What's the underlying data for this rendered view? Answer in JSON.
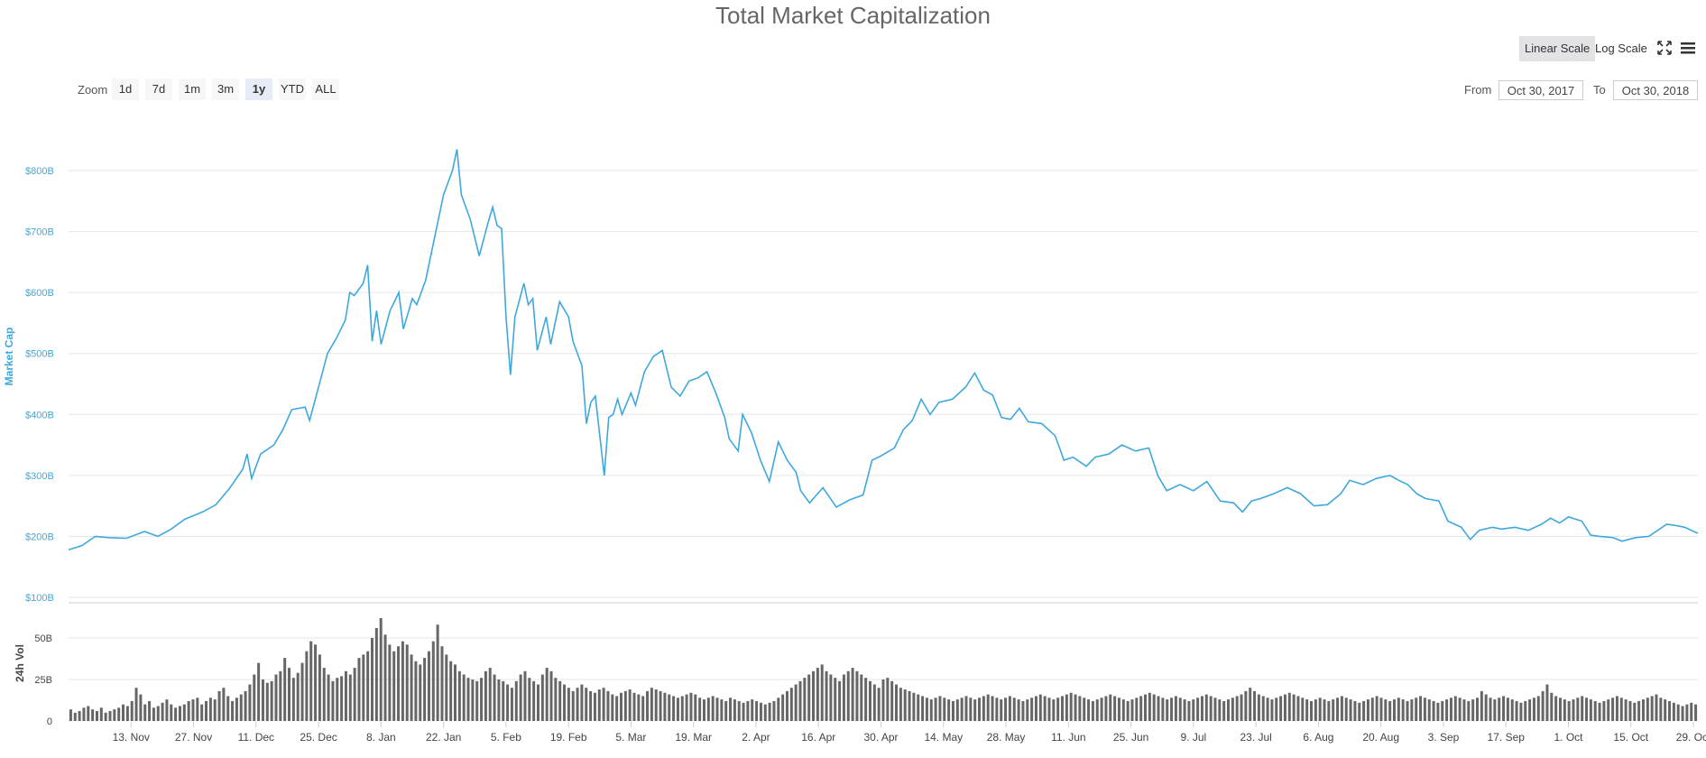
{
  "title": "Total Market Capitalization",
  "scale_buttons": {
    "linear": "Linear Scale",
    "log": "Log Scale",
    "active": "linear"
  },
  "toolbar_icons": [
    "fullscreen-icon",
    "menu-icon"
  ],
  "zoom": {
    "label": "Zoom",
    "buttons": [
      "1d",
      "7d",
      "1m",
      "3m",
      "1y",
      "YTD",
      "ALL"
    ],
    "active": "1y"
  },
  "range": {
    "from_label": "From",
    "from_value": "Oct 30, 2017",
    "to_label": "To",
    "to_value": "Oct 30, 2018"
  },
  "colors": {
    "line": "#3ea8dd",
    "axis_label": "#3ea8dd",
    "volume_bar": "#666666",
    "grid": "#e6e6e6"
  },
  "chart_data": {
    "type": "line",
    "x_range": [
      "2017-10-30",
      "2018-10-30"
    ],
    "ylabel": "Market Cap",
    "y_ticks": [
      "$100B",
      "$200B",
      "$300B",
      "$400B",
      "$500B",
      "$600B",
      "$700B",
      "$800B"
    ],
    "y_tick_values": [
      100,
      200,
      300,
      400,
      500,
      600,
      700,
      800
    ],
    "ylim": [
      100,
      880
    ],
    "x_ticks": [
      "13. Nov",
      "27. Nov",
      "11. Dec",
      "25. Dec",
      "8. Jan",
      "22. Jan",
      "5. Feb",
      "19. Feb",
      "5. Mar",
      "19. Mar",
      "2. Apr",
      "16. Apr",
      "30. Apr",
      "14. May",
      "28. May",
      "11. Jun",
      "25. Jun",
      "9. Jul",
      "23. Jul",
      "6. Aug",
      "20. Aug",
      "3. Sep",
      "17. Sep",
      "1. Oct",
      "15. Oct",
      "29. Oct"
    ],
    "x_tick_days": [
      14,
      28,
      42,
      56,
      70,
      84,
      98,
      112,
      126,
      140,
      154,
      168,
      182,
      196,
      210,
      224,
      238,
      252,
      266,
      280,
      294,
      308,
      322,
      336,
      350,
      364
    ],
    "market_cap_series": {
      "unit": "billions USD",
      "points": [
        [
          "2017-10-30",
          178
        ],
        [
          "2017-11-02",
          185
        ],
        [
          "2017-11-05",
          200
        ],
        [
          "2017-11-08",
          198
        ],
        [
          "2017-11-12",
          197
        ],
        [
          "2017-11-16",
          208
        ],
        [
          "2017-11-19",
          200
        ],
        [
          "2017-11-22",
          212
        ],
        [
          "2017-11-25",
          228
        ],
        [
          "2017-11-29",
          240
        ],
        [
          "2017-12-02",
          252
        ],
        [
          "2017-12-05",
          278
        ],
        [
          "2017-12-08",
          310
        ],
        [
          "2017-12-09",
          335
        ],
        [
          "2017-12-10",
          295
        ],
        [
          "2017-12-12",
          335
        ],
        [
          "2017-12-15",
          350
        ],
        [
          "2017-12-17",
          375
        ],
        [
          "2017-12-19",
          408
        ],
        [
          "2017-12-22",
          412
        ],
        [
          "2017-12-23",
          390
        ],
        [
          "2017-12-25",
          445
        ],
        [
          "2017-12-27",
          500
        ],
        [
          "2017-12-29",
          525
        ],
        [
          "2017-12-31",
          555
        ],
        [
          "2018-01-01",
          600
        ],
        [
          "2018-01-02",
          595
        ],
        [
          "2018-01-04",
          615
        ],
        [
          "2018-01-05",
          645
        ],
        [
          "2018-01-06",
          520
        ],
        [
          "2018-01-07",
          570
        ],
        [
          "2018-01-08",
          515
        ],
        [
          "2018-01-10",
          570
        ],
        [
          "2018-01-12",
          600
        ],
        [
          "2018-01-13",
          540
        ],
        [
          "2018-01-15",
          590
        ],
        [
          "2018-01-16",
          580
        ],
        [
          "2018-01-18",
          620
        ],
        [
          "2018-01-20",
          690
        ],
        [
          "2018-01-22",
          760
        ],
        [
          "2018-01-24",
          800
        ],
        [
          "2018-01-25",
          835
        ],
        [
          "2018-01-26",
          760
        ],
        [
          "2018-01-28",
          720
        ],
        [
          "2018-01-30",
          660
        ],
        [
          "2018-02-01",
          715
        ],
        [
          "2018-02-02",
          740
        ],
        [
          "2018-02-03",
          710
        ],
        [
          "2018-02-04",
          705
        ],
        [
          "2018-02-05",
          560
        ],
        [
          "2018-02-06",
          465
        ],
        [
          "2018-02-07",
          560
        ],
        [
          "2018-02-09",
          615
        ],
        [
          "2018-02-10",
          580
        ],
        [
          "2018-02-11",
          590
        ],
        [
          "2018-02-12",
          505
        ],
        [
          "2018-02-14",
          560
        ],
        [
          "2018-02-15",
          515
        ],
        [
          "2018-02-17",
          585
        ],
        [
          "2018-02-19",
          560
        ],
        [
          "2018-02-20",
          520
        ],
        [
          "2018-02-22",
          480
        ],
        [
          "2018-02-23",
          385
        ],
        [
          "2018-02-24",
          420
        ],
        [
          "2018-02-25",
          430
        ],
        [
          "2018-02-27",
          300
        ],
        [
          "2018-02-28",
          395
        ],
        [
          "2018-03-01",
          400
        ],
        [
          "2018-03-02",
          425
        ],
        [
          "2018-03-03",
          400
        ],
        [
          "2018-03-05",
          435
        ],
        [
          "2018-03-06",
          415
        ],
        [
          "2018-03-08",
          470
        ],
        [
          "2018-03-10",
          495
        ],
        [
          "2018-03-12",
          505
        ],
        [
          "2018-03-14",
          445
        ],
        [
          "2018-03-16",
          430
        ],
        [
          "2018-03-18",
          455
        ],
        [
          "2018-03-20",
          460
        ],
        [
          "2018-03-22",
          470
        ],
        [
          "2018-03-24",
          435
        ],
        [
          "2018-03-26",
          395
        ],
        [
          "2018-03-27",
          360
        ],
        [
          "2018-03-29",
          340
        ],
        [
          "2018-03-30",
          400
        ],
        [
          "2018-04-01",
          370
        ],
        [
          "2018-04-03",
          325
        ],
        [
          "2018-04-05",
          290
        ],
        [
          "2018-04-07",
          355
        ],
        [
          "2018-04-09",
          325
        ],
        [
          "2018-04-11",
          305
        ],
        [
          "2018-04-12",
          275
        ],
        [
          "2018-04-14",
          255
        ],
        [
          "2018-04-17",
          280
        ],
        [
          "2018-04-20",
          248
        ],
        [
          "2018-04-23",
          260
        ],
        [
          "2018-04-26",
          268
        ],
        [
          "2018-04-28",
          325
        ],
        [
          "2018-04-30",
          332
        ],
        [
          "2018-05-03",
          345
        ],
        [
          "2018-05-05",
          375
        ],
        [
          "2018-05-07",
          390
        ],
        [
          "2018-05-09",
          425
        ],
        [
          "2018-05-11",
          400
        ],
        [
          "2018-05-13",
          420
        ],
        [
          "2018-05-16",
          425
        ],
        [
          "2018-05-19",
          445
        ],
        [
          "2018-05-21",
          468
        ],
        [
          "2018-05-23",
          440
        ],
        [
          "2018-05-25",
          432
        ],
        [
          "2018-05-27",
          395
        ],
        [
          "2018-05-29",
          392
        ],
        [
          "2018-05-31",
          410
        ],
        [
          "2018-06-02",
          388
        ],
        [
          "2018-06-05",
          385
        ],
        [
          "2018-06-08",
          365
        ],
        [
          "2018-06-10",
          325
        ],
        [
          "2018-06-12",
          330
        ],
        [
          "2018-06-15",
          315
        ],
        [
          "2018-06-17",
          330
        ],
        [
          "2018-06-20",
          335
        ],
        [
          "2018-06-23",
          350
        ],
        [
          "2018-06-26",
          340
        ],
        [
          "2018-06-29",
          345
        ],
        [
          "2018-07-01",
          300
        ],
        [
          "2018-07-03",
          275
        ],
        [
          "2018-07-06",
          285
        ],
        [
          "2018-07-09",
          275
        ],
        [
          "2018-07-12",
          290
        ],
        [
          "2018-07-15",
          258
        ],
        [
          "2018-07-18",
          255
        ],
        [
          "2018-07-20",
          240
        ],
        [
          "2018-07-22",
          258
        ],
        [
          "2018-07-24",
          262
        ],
        [
          "2018-07-27",
          270
        ],
        [
          "2018-07-30",
          280
        ],
        [
          "2018-08-02",
          270
        ],
        [
          "2018-08-05",
          250
        ],
        [
          "2018-08-08",
          252
        ],
        [
          "2018-08-11",
          270
        ],
        [
          "2018-08-13",
          292
        ],
        [
          "2018-08-16",
          285
        ],
        [
          "2018-08-19",
          295
        ],
        [
          "2018-08-22",
          300
        ],
        [
          "2018-08-24",
          292
        ],
        [
          "2018-08-26",
          285
        ],
        [
          "2018-08-28",
          270
        ],
        [
          "2018-08-30",
          262
        ],
        [
          "2018-09-02",
          258
        ],
        [
          "2018-09-04",
          225
        ],
        [
          "2018-09-07",
          215
        ],
        [
          "2018-09-09",
          195
        ],
        [
          "2018-09-11",
          210
        ],
        [
          "2018-09-14",
          215
        ],
        [
          "2018-09-16",
          212
        ],
        [
          "2018-09-19",
          215
        ],
        [
          "2018-09-22",
          210
        ],
        [
          "2018-09-25",
          220
        ],
        [
          "2018-09-27",
          230
        ],
        [
          "2018-09-29",
          222
        ],
        [
          "2018-10-01",
          232
        ],
        [
          "2018-10-04",
          225
        ],
        [
          "2018-10-06",
          202
        ],
        [
          "2018-10-08",
          200
        ],
        [
          "2018-10-11",
          198
        ],
        [
          "2018-10-13",
          192
        ],
        [
          "2018-10-16",
          198
        ],
        [
          "2018-10-19",
          200
        ],
        [
          "2018-10-21",
          210
        ],
        [
          "2018-10-23",
          220
        ],
        [
          "2018-10-25",
          218
        ],
        [
          "2018-10-27",
          215
        ],
        [
          "2018-10-30",
          205
        ]
      ]
    },
    "volume_series": {
      "ylabel": "24h Vol",
      "y_ticks": [
        "0",
        "25B",
        "50B"
      ],
      "y_tick_values": [
        0,
        25,
        50
      ],
      "ylim": [
        0,
        66
      ],
      "unit": "billions USD",
      "x_step_days": 1,
      "values": [
        7,
        5,
        6,
        8,
        9,
        7,
        6,
        8,
        5,
        6,
        7,
        8,
        10,
        9,
        12,
        20,
        16,
        10,
        12,
        8,
        9,
        11,
        13,
        10,
        8,
        9,
        10,
        12,
        13,
        14,
        10,
        12,
        14,
        13,
        18,
        20,
        15,
        12,
        14,
        16,
        18,
        22,
        28,
        35,
        25,
        23,
        24,
        28,
        30,
        38,
        32,
        26,
        29,
        35,
        42,
        48,
        46,
        40,
        32,
        28,
        24,
        26,
        27,
        30,
        28,
        32,
        38,
        40,
        42,
        50,
        56,
        62,
        52,
        46,
        42,
        45,
        48,
        46,
        40,
        36,
        34,
        38,
        42,
        48,
        58,
        45,
        40,
        36,
        34,
        30,
        28,
        26,
        25,
        24,
        26,
        30,
        32,
        28,
        25,
        24,
        22,
        20,
        24,
        28,
        30,
        26,
        24,
        22,
        28,
        32,
        30,
        26,
        24,
        22,
        20,
        18,
        20,
        22,
        20,
        18,
        17,
        19,
        20,
        18,
        16,
        15,
        17,
        18,
        19,
        17,
        16,
        15,
        18,
        20,
        19,
        18,
        17,
        16,
        15,
        14,
        15,
        16,
        17,
        16,
        14,
        13,
        14,
        15,
        14,
        13,
        12,
        14,
        13,
        12,
        11,
        12,
        13,
        12,
        11,
        10,
        11,
        12,
        14,
        16,
        18,
        20,
        22,
        24,
        26,
        28,
        30,
        32,
        34,
        30,
        28,
        26,
        24,
        28,
        30,
        32,
        30,
        28,
        26,
        24,
        22,
        20,
        25,
        26,
        24,
        22,
        20,
        19,
        18,
        17,
        16,
        15,
        14,
        13,
        14,
        15,
        14,
        13,
        12,
        13,
        14,
        15,
        14,
        13,
        14,
        15,
        16,
        15,
        14,
        13,
        14,
        15,
        14,
        13,
        12,
        13,
        14,
        15,
        16,
        15,
        14,
        13,
        14,
        15,
        16,
        17,
        16,
        15,
        14,
        13,
        12,
        13,
        14,
        15,
        16,
        15,
        14,
        13,
        12,
        13,
        14,
        15,
        16,
        17,
        16,
        15,
        14,
        13,
        14,
        15,
        14,
        13,
        12,
        13,
        14,
        15,
        16,
        15,
        14,
        13,
        12,
        13,
        14,
        15,
        16,
        18,
        20,
        18,
        16,
        15,
        14,
        13,
        14,
        15,
        16,
        17,
        16,
        15,
        14,
        13,
        12,
        13,
        14,
        13,
        12,
        13,
        14,
        15,
        14,
        13,
        12,
        11,
        12,
        13,
        14,
        15,
        14,
        13,
        12,
        13,
        14,
        13,
        12,
        13,
        14,
        15,
        14,
        13,
        12,
        11,
        12,
        13,
        14,
        15,
        14,
        13,
        12,
        13,
        14,
        18,
        16,
        14,
        13,
        14,
        15,
        14,
        13,
        12,
        11,
        12,
        13,
        14,
        15,
        18,
        22,
        17,
        15,
        14,
        13,
        12,
        13,
        14,
        15,
        14,
        13,
        12,
        11,
        12,
        13,
        14,
        15,
        14,
        13,
        12,
        11,
        12,
        13,
        14,
        15,
        16,
        14,
        13,
        12,
        11,
        10,
        9,
        10,
        11,
        10
      ]
    }
  }
}
